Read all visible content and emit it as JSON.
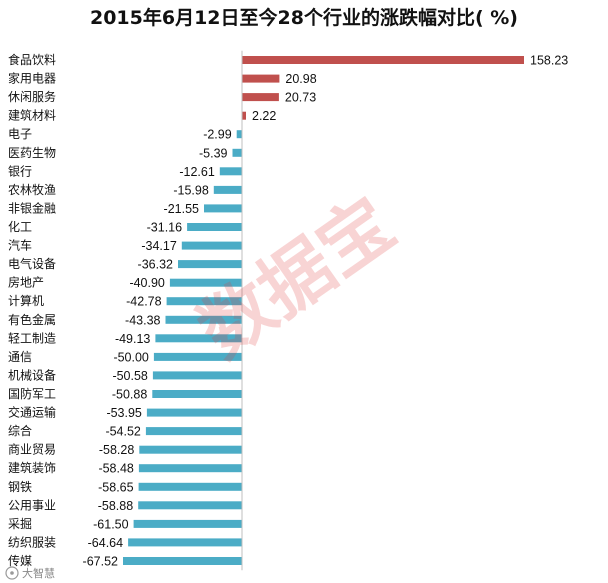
{
  "chart_data": {
    "type": "bar",
    "orientation": "horizontal",
    "title": "2015年6月12日至今28个行业的涨跌幅对比( %)",
    "categories": [
      "食品饮料",
      "家用电器",
      "休闲服务",
      "建筑材料",
      "电子",
      "医药生物",
      "银行",
      "农林牧渔",
      "非银金融",
      "化工",
      "汽车",
      "电气设备",
      "房地产",
      "计算机",
      "有色金属",
      "轻工制造",
      "通信",
      "机械设备",
      "国防军工",
      "交通运输",
      "综合",
      "商业贸易",
      "建筑装饰",
      "钢铁",
      "公用事业",
      "采掘",
      "纺织服装",
      "传媒"
    ],
    "values": [
      158.23,
      20.98,
      20.73,
      2.22,
      -2.99,
      -5.39,
      -12.61,
      -15.98,
      -21.55,
      -31.16,
      -34.17,
      -36.32,
      -40.9,
      -42.78,
      -43.38,
      -49.13,
      -50.0,
      -50.58,
      -50.88,
      -53.95,
      -54.52,
      -58.28,
      -58.48,
      -58.65,
      -58.88,
      -61.5,
      -64.64,
      -67.52
    ],
    "value_labels": [
      "158.23",
      "20.98",
      "20.73",
      "2.22",
      "-2.99",
      "-5.39",
      "-12.61",
      "-15.98",
      "-21.55",
      "-31.16",
      "-34.17",
      "-36.32",
      "-40.90",
      "-42.78",
      "-43.38",
      "-49.13",
      "-50.00",
      "-50.58",
      "-50.88",
      "-53.95",
      "-54.52",
      "-58.28",
      "-58.48",
      "-58.65",
      "-58.88",
      "-61.50",
      "-64.64",
      "-67.52"
    ],
    "positive_color": "#c0504d",
    "negative_color": "#4bacc6",
    "xlim": [
      -68,
      160
    ],
    "xlabel": "",
    "ylabel": "",
    "grid": false,
    "legend": "none"
  },
  "watermark": {
    "text": "数据宝"
  },
  "source": {
    "icon": "weibo-logo-icon",
    "text": "大智慧"
  }
}
